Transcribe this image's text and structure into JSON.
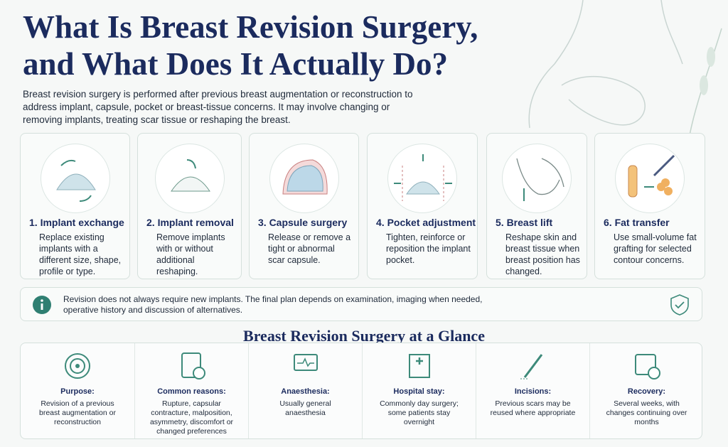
{
  "header": {
    "title_lines": [
      "What Is Breast Revision Surgery,",
      "and What Does It Actually Do?"
    ],
    "intro": "Breast revision surgery is performed after previous breast augmentation or reconstruction to address implant, capsule, pocket or breast-tissue concerns. It may involve changing or removing implants, treating scar tissue or reshaping the breast."
  },
  "cards": [
    {
      "title": "1. Implant exchange",
      "text": "Replace existing implants with a different size, shape, profile or type."
    },
    {
      "title": "2. Implant removal",
      "text": "Remove implants with or without additional reshaping."
    },
    {
      "title": "3. Capsule surgery",
      "text": "Release or remove a tight or abnormal scar capsule."
    },
    {
      "title": "4. Pocket adjustment",
      "text": "Tighten, reinforce or reposition the implant pocket."
    },
    {
      "title": "5. Breast lift",
      "text": "Reshape skin and breast tissue when breast position has changed."
    },
    {
      "title": "6. Fat transfer",
      "text": "Use small-volume fat grafting for selected contour concerns."
    }
  ],
  "note": {
    "text": "Revision does not always require new implants. The final plan depends on examination, imaging when needed, operative history and discussion of alternatives."
  },
  "glance": {
    "title": "Breast Revision Surgery at a Glance",
    "items": [
      {
        "label": "Purpose:",
        "text": "Revision of a previous breast augmentation or reconstruction"
      },
      {
        "label": "Common reasons:",
        "text": "Rupture, capsular contracture, malposition, asymmetry, discomfort or changed preferences"
      },
      {
        "label": "Anaesthesia:",
        "text": "Usually general anaesthesia"
      },
      {
        "label": "Hospital stay:",
        "text": "Commonly day surgery; some patients stay overnight"
      },
      {
        "label": "Incisions:",
        "text": "Previous scars may be reused where appropriate"
      },
      {
        "label": "Recovery:",
        "text": "Several weeks, with changes continuing over months"
      }
    ]
  }
}
